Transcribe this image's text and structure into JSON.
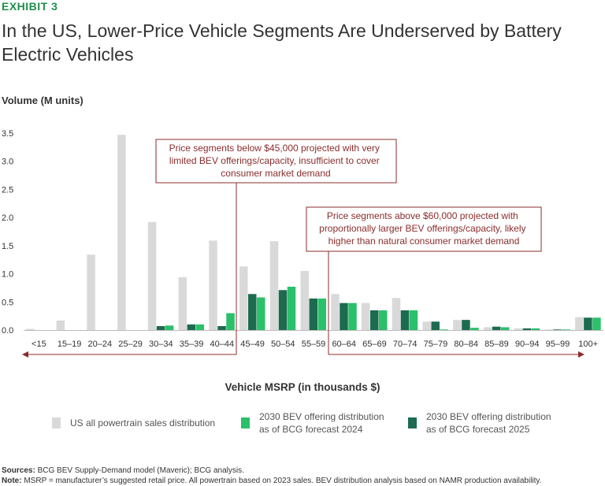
{
  "exhibit_label": "EXHIBIT 3",
  "title": "In the US, Lower-Price Vehicle Segments Are Underserved by Battery Electric Vehicles",
  "colors": {
    "us": "#d9d9d9",
    "bev2024": "#2bc06a",
    "bev2025": "#1d6b4f",
    "annotation": "#8b2c2c",
    "exhibit": "#1f8f4e"
  },
  "chart_data": {
    "type": "bar",
    "ylabel": "Volume (M units)",
    "xlabel": "Vehicle MSRP (in thousands $)",
    "ylim": [
      0,
      3.5
    ],
    "yticks": [
      "0.0",
      "0.5",
      "1.0",
      "1.5",
      "2.0",
      "2.5",
      "3.0",
      "3.5"
    ],
    "categories": [
      "<15",
      "15–19",
      "20–24",
      "25–29",
      "30–34",
      "35–39",
      "40–44",
      "45–49",
      "50–54",
      "55–59",
      "60–64",
      "65–69",
      "70–74",
      "75–79",
      "80–84",
      "85–89",
      "90–94",
      "95–99",
      "100+"
    ],
    "series": [
      {
        "name": "US all powertrain sales distribution",
        "key": "us",
        "values": [
          0.02,
          0.17,
          1.34,
          3.47,
          1.92,
          0.94,
          1.59,
          1.13,
          1.58,
          1.05,
          0.64,
          0.48,
          0.57,
          0.15,
          0.18,
          0.05,
          0.03,
          0.01,
          0.23
        ]
      },
      {
        "name": "2030 BEV offering distribution as of BCG forecast 2025",
        "key": "bev2025",
        "values": [
          0.0,
          0.0,
          0.0,
          0.0,
          0.07,
          0.1,
          0.07,
          0.64,
          0.71,
          0.56,
          0.48,
          0.35,
          0.35,
          0.15,
          0.18,
          0.06,
          0.03,
          0.01,
          0.22
        ]
      },
      {
        "name": "2030 BEV offering distribution as of BCG forecast 2024",
        "key": "bev2024",
        "values": [
          0.0,
          0.0,
          0.0,
          0.0,
          0.08,
          0.1,
          0.3,
          0.58,
          0.77,
          0.56,
          0.48,
          0.35,
          0.35,
          0.01,
          0.04,
          0.05,
          0.03,
          0.01,
          0.22
        ]
      }
    ],
    "annotations": [
      "Price segments below $45,000 projected with very limited BEV offerings/capacity, insufficient to cover consumer market demand",
      "Price segments above $60,000 projected with proportionally larger BEV offerings/capacity, likely higher than natural consumer market demand"
    ]
  },
  "legend": [
    {
      "label_line1": "US all powertrain sales distribution",
      "label_line2": ""
    },
    {
      "label_line1": "2030 BEV offering distribution",
      "label_line2": "as of BCG forecast 2024"
    },
    {
      "label_line1": "2030 BEV offering distribution",
      "label_line2": "as of BCG forecast 2025"
    }
  ],
  "notes": {
    "sources_label": "Sources:",
    "sources_text": "BCG BEV Supply-Demand model (Maveric); BCG analysis.",
    "note_label": "Note:",
    "note_text": "MSRP = manufacturer’s suggested retail price. All powertrain based on 2023 sales. BEV distribution analysis based on NAMR production availability."
  }
}
